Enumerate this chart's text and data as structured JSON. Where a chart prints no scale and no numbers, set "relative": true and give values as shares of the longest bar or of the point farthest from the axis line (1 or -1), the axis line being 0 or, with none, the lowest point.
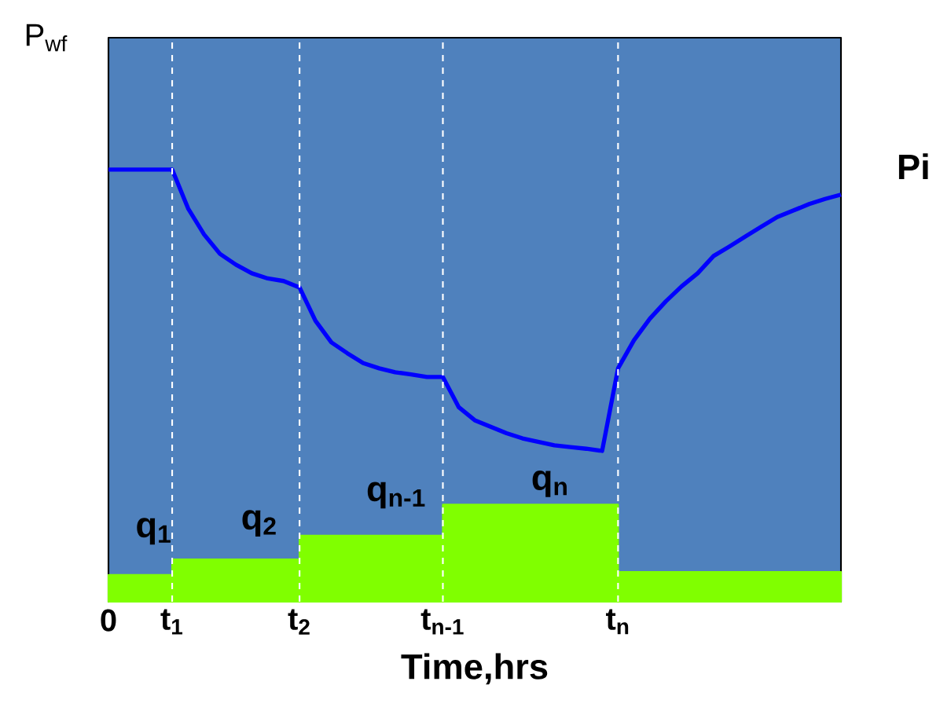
{
  "chart_data": {
    "type": "line",
    "relative": true,
    "xlabel": "Time,hrs",
    "ylabel": "P$_{wf}$",
    "categories": [
      "0",
      null,
      null,
      null,
      "t$_{1}$",
      null,
      null,
      null,
      null,
      null,
      null,
      null,
      "t$_{2}$",
      null,
      null,
      null,
      null,
      null,
      null,
      null,
      null,
      "t$_{n-1}$",
      null,
      null,
      null,
      null,
      null,
      null,
      null,
      null,
      null,
      null,
      "t$_{n}$",
      null,
      null,
      null,
      null,
      null,
      null,
      null,
      null,
      null,
      null,
      null,
      null,
      null,
      null
    ],
    "series": [
      {
        "color": "#0000ff",
        "values": [
          1.0,
          1.0,
          1.0,
          1.0,
          1.0,
          0.91,
          0.85,
          0.805,
          0.78,
          0.76,
          0.748,
          0.742,
          0.727,
          0.65,
          0.6,
          0.575,
          0.552,
          0.54,
          0.531,
          0.526,
          0.52,
          0.52,
          0.45,
          0.42,
          0.405,
          0.39,
          0.378,
          0.37,
          0.362,
          0.358,
          0.354,
          0.349,
          0.54,
          0.605,
          0.655,
          0.695,
          0.73,
          0.76,
          0.8,
          0.822,
          0.845,
          0.868,
          0.89,
          0.905,
          0.92,
          0.932,
          0.942
        ]
      },
      {
        "type": "area",
        "color": "#80ff00",
        "values": [
          0.062,
          0.062,
          0.062,
          0.062,
          0.098,
          0.098,
          0.098,
          0.098,
          0.098,
          0.098,
          0.098,
          0.098,
          0.153,
          0.153,
          0.153,
          0.153,
          0.153,
          0.153,
          0.153,
          0.153,
          0.153,
          0.225,
          0.225,
          0.225,
          0.225,
          0.225,
          0.225,
          0.225,
          0.225,
          0.225,
          0.225,
          0.225,
          0.069,
          0.069,
          0.069,
          0.069,
          0.069,
          0.069,
          0.069,
          0.069,
          0.069,
          0.069,
          0.069,
          0.069,
          0.069,
          0.069,
          0.069
        ]
      }
    ],
    "ref_lines": [
      {
        "axis": "x",
        "value": "t$_{1}$",
        "color": "#ffffff",
        "line_style": "dashed"
      },
      {
        "axis": "x",
        "value": "t$_{2}$",
        "color": "#ffffff",
        "line_style": "dashed"
      },
      {
        "axis": "x",
        "value": "t$_{n-1}$",
        "color": "#ffffff",
        "line_style": "dashed"
      },
      {
        "axis": "x",
        "value": "t$_{n}$",
        "color": "#ffffff",
        "line_style": "dashed"
      }
    ],
    "annotations": [
      "q$_{1}$",
      "q$_{2}$",
      "q$_{n-1}$",
      "q$_{n}$",
      "Pi"
    ],
    "marker": "none"
  }
}
